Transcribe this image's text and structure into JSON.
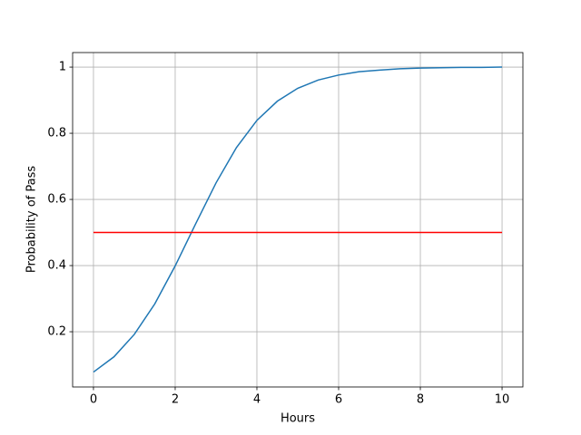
{
  "chart_data": {
    "type": "line",
    "xlabel": "Hours",
    "ylabel": "Probability of Pass",
    "xlim": [
      -0.51,
      10.51
    ],
    "ylim": [
      0.033,
      1.044
    ],
    "xticks": [
      0,
      2,
      4,
      6,
      8,
      10
    ],
    "yticks": [
      0.2,
      0.4,
      0.6,
      0.8,
      1.0
    ],
    "grid": true,
    "series": [
      {
        "color": "#1f77b4",
        "x": [
          0,
          0.5,
          1,
          1.5,
          2,
          2.5,
          3,
          3.5,
          4,
          4.5,
          5,
          5.5,
          6,
          6.5,
          7,
          7.5,
          8,
          8.5,
          9,
          9.5,
          10
        ],
        "values": [
          0.078,
          0.124,
          0.192,
          0.284,
          0.399,
          0.526,
          0.65,
          0.757,
          0.839,
          0.897,
          0.936,
          0.961,
          0.976,
          0.986,
          0.991,
          0.995,
          0.997,
          0.998,
          0.999,
          0.999,
          1.0
        ]
      },
      {
        "color": "#ff0000",
        "x": [
          0,
          10
        ],
        "values": [
          0.5,
          0.5
        ]
      }
    ]
  }
}
